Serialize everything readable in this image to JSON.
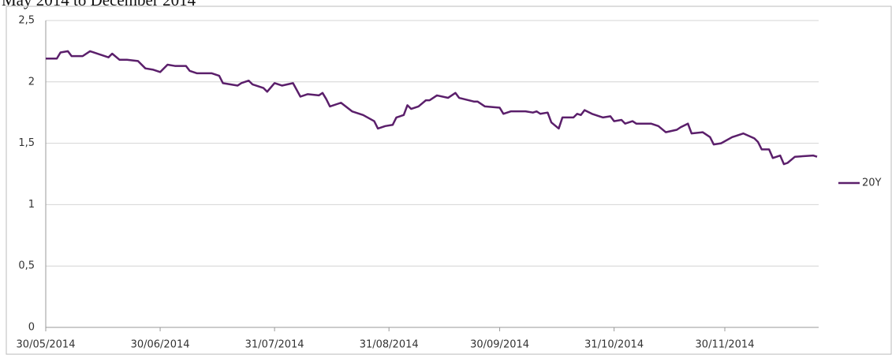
{
  "chart_data": {
    "type": "line",
    "title": "May 2014 to December 2014",
    "x": [
      "2014-05-30",
      "2014-06-02",
      "2014-06-03",
      "2014-06-05",
      "2014-06-06",
      "2014-06-09",
      "2014-06-11",
      "2014-06-12",
      "2014-06-14",
      "2014-06-16",
      "2014-06-17",
      "2014-06-19",
      "2014-06-21",
      "2014-06-24",
      "2014-06-26",
      "2014-06-28",
      "2014-06-30",
      "2014-07-02",
      "2014-07-04",
      "2014-07-07",
      "2014-07-08",
      "2014-07-10",
      "2014-07-14",
      "2014-07-16",
      "2014-07-17",
      "2014-07-21",
      "2014-07-22",
      "2014-07-24",
      "2014-07-25",
      "2014-07-28",
      "2014-07-29",
      "2014-07-31",
      "2014-08-02",
      "2014-08-05",
      "2014-08-07",
      "2014-08-09",
      "2014-08-12",
      "2014-08-13",
      "2014-08-14",
      "2014-08-15",
      "2014-08-18",
      "2014-08-21",
      "2014-08-24",
      "2014-08-27",
      "2014-08-28",
      "2014-08-30",
      "2014-09-01",
      "2014-09-02",
      "2014-09-04",
      "2014-09-05",
      "2014-09-06",
      "2014-09-08",
      "2014-09-10",
      "2014-09-11",
      "2014-09-13",
      "2014-09-16",
      "2014-09-17",
      "2014-09-18",
      "2014-09-19",
      "2014-09-23",
      "2014-09-24",
      "2014-09-26",
      "2014-09-30",
      "2014-10-01",
      "2014-10-03",
      "2014-10-07",
      "2014-10-09",
      "2014-10-10",
      "2014-10-11",
      "2014-10-13",
      "2014-10-14",
      "2014-10-16",
      "2014-10-17",
      "2014-10-20",
      "2014-10-21",
      "2014-10-22",
      "2014-10-23",
      "2014-10-25",
      "2014-10-28",
      "2014-10-30",
      "2014-10-31",
      "2014-11-02",
      "2014-11-03",
      "2014-11-05",
      "2014-11-06",
      "2014-11-10",
      "2014-11-12",
      "2014-11-14",
      "2014-11-17",
      "2014-11-18",
      "2014-11-20",
      "2014-11-21",
      "2014-11-24",
      "2014-11-26",
      "2014-11-27",
      "2014-11-29",
      "2014-12-02",
      "2014-12-03",
      "2014-12-05",
      "2014-12-08",
      "2014-12-09",
      "2014-12-10",
      "2014-12-12",
      "2014-12-13",
      "2014-12-15",
      "2014-12-16",
      "2014-12-17",
      "2014-12-19",
      "2014-12-24",
      "2014-12-25"
    ],
    "series": [
      {
        "name": "20Y",
        "color": "#5b1f6b",
        "values": [
          2.19,
          2.19,
          2.24,
          2.25,
          2.21,
          2.21,
          2.25,
          2.24,
          2.22,
          2.2,
          2.23,
          2.18,
          2.18,
          2.17,
          2.11,
          2.1,
          2.08,
          2.14,
          2.13,
          2.13,
          2.09,
          2.07,
          2.07,
          2.05,
          1.99,
          1.97,
          1.99,
          2.01,
          1.98,
          1.95,
          1.92,
          1.99,
          1.97,
          1.99,
          1.88,
          1.9,
          1.89,
          1.91,
          1.86,
          1.8,
          1.83,
          1.76,
          1.73,
          1.68,
          1.62,
          1.64,
          1.65,
          1.71,
          1.73,
          1.81,
          1.78,
          1.8,
          1.85,
          1.85,
          1.89,
          1.87,
          1.89,
          1.91,
          1.87,
          1.84,
          1.84,
          1.8,
          1.79,
          1.74,
          1.76,
          1.76,
          1.75,
          1.76,
          1.74,
          1.75,
          1.67,
          1.62,
          1.71,
          1.71,
          1.74,
          1.73,
          1.77,
          1.74,
          1.71,
          1.72,
          1.68,
          1.69,
          1.66,
          1.68,
          1.66,
          1.66,
          1.64,
          1.59,
          1.61,
          1.63,
          1.66,
          1.58,
          1.59,
          1.55,
          1.49,
          1.5,
          1.55,
          1.56,
          1.58,
          1.54,
          1.51,
          1.45,
          1.45,
          1.38,
          1.4,
          1.33,
          1.34,
          1.39,
          1.4,
          1.39
        ]
      }
    ],
    "xlim": [
      "2014-05-30",
      "2014-12-25"
    ],
    "xticks": [
      {
        "value": "2014-05-30",
        "label": "30/05/2014"
      },
      {
        "value": "2014-06-30",
        "label": "30/06/2014"
      },
      {
        "value": "2014-07-31",
        "label": "31/07/2014"
      },
      {
        "value": "2014-08-31",
        "label": "31/08/2014"
      },
      {
        "value": "2014-09-30",
        "label": "30/09/2014"
      },
      {
        "value": "2014-10-31",
        "label": "31/10/2014"
      },
      {
        "value": "2014-11-30",
        "label": "30/11/2014"
      }
    ],
    "ylim": [
      0,
      2.5
    ],
    "yticks": [
      0,
      {
        "value": 0.5,
        "label": "0,5"
      },
      1,
      {
        "value": 1.5,
        "label": "1,5"
      },
      2,
      {
        "value": 2.5,
        "label": "2,5"
      }
    ],
    "grid": true,
    "legend": "right"
  }
}
